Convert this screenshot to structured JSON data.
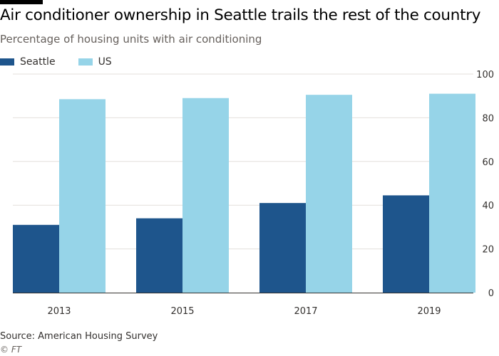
{
  "header": {
    "title": "Air conditioner ownership in Seattle trails the rest of the country",
    "subtitle": "Percentage of housing units with air conditioning"
  },
  "footer": {
    "source": "Source: American Housing Survey",
    "credit": "© FT"
  },
  "colors": {
    "seattle": "#1e558c",
    "us": "#96d4e8",
    "grid": "#e3dfdb",
    "axis": "#33302e",
    "tick_text": "#33302e"
  },
  "chart_data": {
    "type": "bar",
    "title": "Air conditioner ownership in Seattle trails the rest of the country",
    "subtitle": "Percentage of housing units with air conditioning",
    "categories": [
      "2013",
      "2015",
      "2017",
      "2019"
    ],
    "series": [
      {
        "name": "Seattle",
        "values": [
          31,
          34,
          41,
          44.5
        ]
      },
      {
        "name": "US",
        "values": [
          88.5,
          89,
          90.5,
          91
        ]
      }
    ],
    "ylim": [
      0,
      100
    ],
    "yticks": [
      0,
      20,
      40,
      60,
      80,
      100
    ],
    "y_axis_side": "right",
    "grid": true,
    "legend": "top-left",
    "xlabel": "",
    "ylabel": ""
  }
}
